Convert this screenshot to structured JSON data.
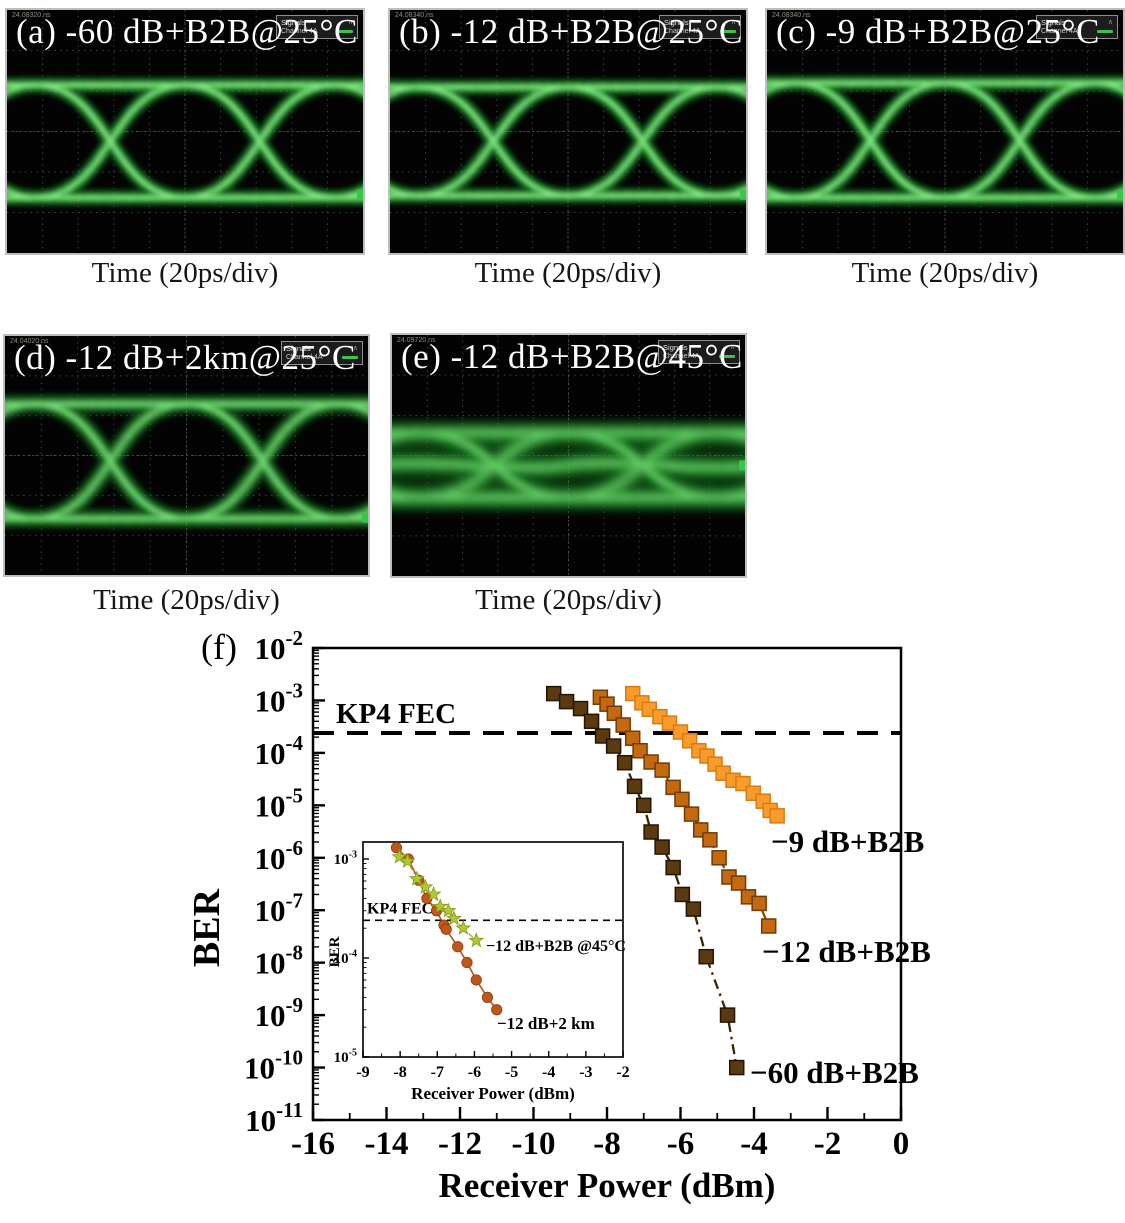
{
  "figure": {
    "panel_f_label": "(f)",
    "time_caption": "Time (20ps/div)",
    "scope_legend": {
      "title": "Signals",
      "channel": "Channel 4A"
    },
    "panels": {
      "a": {
        "label": "(a) -60 dB+B2B@25°C",
        "timestamp": "24.08320 ns"
      },
      "b": {
        "label": "(b) -12 dB+B2B@25°C",
        "timestamp": "24.08340 ns"
      },
      "c": {
        "label": "(c) -9 dB+B2B@25°C",
        "timestamp": "24.08340 ns"
      },
      "d": {
        "label": "(d) -12 dB+2km@25°C",
        "timestamp": "24.04020 ns"
      },
      "e": {
        "label": "(e) -12 dB+B2B@45°C",
        "timestamp": "24.09720 ns"
      }
    },
    "colors": {
      "eye_green": "#2fb33a",
      "grid_gray": "#3e463e"
    }
  },
  "chart_data": [
    {
      "type": "scatter",
      "title": "",
      "xlabel": "Receiver Power (dBm)",
      "ylabel": "BER",
      "xlim": [
        -16,
        0
      ],
      "x_ticks": [
        -16,
        -14,
        -12,
        -10,
        -8,
        -6,
        -4,
        -2,
        0
      ],
      "y_exponent_ticks": [
        -2,
        -3,
        -4,
        -5,
        -6,
        -7,
        -8,
        -9,
        -10,
        -11
      ],
      "grid": false,
      "legend_position": "inline-labels",
      "threshold": {
        "label": "KP4 FEC",
        "value": 0.00024
      },
      "series": [
        {
          "name": "−60 dB+B2B",
          "marker": "square",
          "color": "#5b3a10",
          "edge_color": "#241503",
          "line_color": "#3a2405",
          "points": [
            [
              -9.45,
              0.00135
            ],
            [
              -9.1,
              0.00095
            ],
            [
              -8.72,
              0.0007
            ],
            [
              -8.42,
              0.0004
            ],
            [
              -8.12,
              0.00021
            ],
            [
              -7.82,
              0.000135
            ],
            [
              -7.52,
              6.5e-05
            ],
            [
              -7.25,
              2.3e-05
            ],
            [
              -7.0,
              1e-05
            ],
            [
              -6.8,
              3.1e-06
            ],
            [
              -6.5,
              1.6e-06
            ],
            [
              -6.2,
              6.5e-07
            ],
            [
              -5.95,
              2e-07
            ],
            [
              -5.65,
              1.05e-07
            ],
            [
              -5.3,
              1.3e-08
            ],
            [
              -4.72,
              1e-09
            ],
            [
              -4.47,
              1e-10
            ]
          ]
        },
        {
          "name": "−12 dB+B2B",
          "marker": "square",
          "color": "#c4690f",
          "edge_color": "#6f3c05",
          "line_color": "#8a4a08",
          "points": [
            [
              -8.18,
              0.00115
            ],
            [
              -8.0,
              0.00085
            ],
            [
              -7.8,
              0.00057
            ],
            [
              -7.56,
              0.00034
            ],
            [
              -7.3,
              0.00019
            ],
            [
              -7.1,
              0.00011
            ],
            [
              -6.8,
              6.7e-05
            ],
            [
              -6.5,
              4.7e-05
            ],
            [
              -6.2,
              2.2e-05
            ],
            [
              -5.96,
              1.3e-05
            ],
            [
              -5.7,
              6.8e-06
            ],
            [
              -5.45,
              3.4e-06
            ],
            [
              -5.2,
              2.2e-06
            ],
            [
              -4.95,
              1e-06
            ],
            [
              -4.68,
              4.3e-07
            ],
            [
              -4.42,
              3.3e-07
            ],
            [
              -4.15,
              1.8e-07
            ],
            [
              -3.86,
              1.35e-07
            ],
            [
              -3.6,
              5e-08
            ]
          ]
        },
        {
          "name": "−9 dB+B2B",
          "marker": "square",
          "color": "#f89b2b",
          "edge_color": "#d97b10",
          "line_color": "#e8880f",
          "points": [
            [
              -7.3,
              0.00135
            ],
            [
              -7.05,
              0.0009
            ],
            [
              -6.85,
              0.00068
            ],
            [
              -6.56,
              0.00049
            ],
            [
              -6.3,
              0.00037
            ],
            [
              -6.0,
              0.00025
            ],
            [
              -5.75,
              0.00017
            ],
            [
              -5.5,
              0.00011
            ],
            [
              -5.28,
              8.7e-05
            ],
            [
              -5.06,
              6.1e-05
            ],
            [
              -4.84,
              4.1e-05
            ],
            [
              -4.57,
              3e-05
            ],
            [
              -4.3,
              2.6e-05
            ],
            [
              -4.02,
              1.7e-05
            ],
            [
              -3.75,
              1.2e-05
            ],
            [
              -3.56,
              8e-06
            ],
            [
              -3.37,
              6.3e-06
            ]
          ]
        }
      ]
    },
    {
      "type": "scatter",
      "title": "",
      "xlabel": "Receiver Power (dBm)",
      "ylabel": "BER",
      "xlim": [
        -9,
        -2
      ],
      "x_ticks": [
        -9,
        -8,
        -7,
        -6,
        -5,
        -4,
        -3,
        -2
      ],
      "y_exponent_ticks": [
        -3,
        -4,
        -5
      ],
      "grid": false,
      "legend_position": "inline-labels",
      "threshold": {
        "label": "KP4 FEC",
        "value": 0.00024
      },
      "series": [
        {
          "name": "−12 dB+2 km",
          "marker": "circle",
          "color": "#c0571a",
          "edge_color": "#8f3e0f",
          "line_color": "#c0571a",
          "points": [
            [
              -8.1,
              0.0013
            ],
            [
              -7.78,
              0.001
            ],
            [
              -7.5,
              0.00061
            ],
            [
              -7.28,
              0.0004
            ],
            [
              -7.02,
              0.0003
            ],
            [
              -6.82,
              0.000215
            ],
            [
              -6.76,
              0.000195
            ],
            [
              -6.45,
              0.00013
            ],
            [
              -6.2,
              9e-05
            ],
            [
              -5.95,
              6e-05
            ],
            [
              -5.65,
              4e-05
            ],
            [
              -5.4,
              3e-05
            ]
          ]
        },
        {
          "name": "−12 dB+B2B @45°C",
          "marker": "star",
          "color": "#b2c832",
          "edge_color": "#85971e",
          "line_color": "#9fb52d",
          "points": [
            [
              -8.02,
              0.00105
            ],
            [
              -7.8,
              0.00095
            ],
            [
              -7.55,
              0.00063
            ],
            [
              -7.32,
              0.00052
            ],
            [
              -7.1,
              0.00044
            ],
            [
              -6.92,
              0.00033
            ],
            [
              -6.7,
              0.0003
            ],
            [
              -6.55,
              0.00025
            ],
            [
              -6.3,
              0.0002
            ],
            [
              -5.95,
              0.00015
            ]
          ]
        }
      ]
    }
  ]
}
